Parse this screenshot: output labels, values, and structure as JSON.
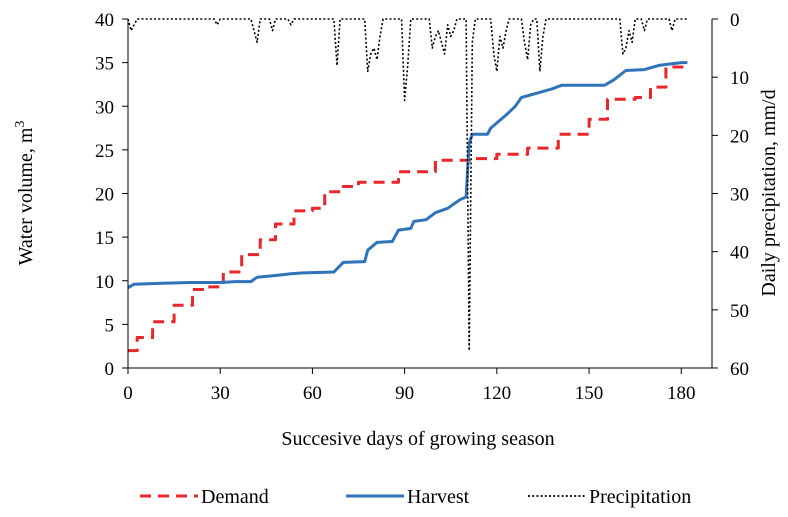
{
  "chart_data": {
    "type": "line",
    "xlabel": "Succesive days of growing season",
    "ylabel_left": "Water volume, m",
    "ylabel_left_sup": "3",
    "ylabel_right": "Daily precipitation, mm/d",
    "xlim": [
      0,
      190
    ],
    "ylim_left": [
      0,
      40
    ],
    "ylim_right": [
      0,
      60
    ],
    "right_axis_inverted": true,
    "x_ticks": [
      "0",
      "30",
      "60",
      "90",
      "120",
      "150",
      "180"
    ],
    "y_left_ticks": [
      "0",
      "5",
      "10",
      "15",
      "20",
      "25",
      "30",
      "35",
      "40"
    ],
    "y_right_ticks": [
      "0",
      "10",
      "20",
      "30",
      "40",
      "50",
      "60"
    ],
    "grid": false,
    "legend_position": "bottom",
    "series": [
      {
        "name": "Demand",
        "axis": "left",
        "color": "#e8262b",
        "style": "dashed",
        "points": [
          [
            0,
            2
          ],
          [
            1,
            2
          ],
          [
            2,
            2
          ],
          [
            3,
            2
          ],
          [
            3,
            3.5
          ],
          [
            8,
            3.5
          ],
          [
            8,
            5.3
          ],
          [
            15,
            5.3
          ],
          [
            15,
            7.2
          ],
          [
            21,
            7.2
          ],
          [
            21,
            9
          ],
          [
            26,
            9
          ],
          [
            26,
            9.3
          ],
          [
            31,
            9.3
          ],
          [
            31,
            11
          ],
          [
            37,
            11
          ],
          [
            37,
            13
          ],
          [
            43,
            13
          ],
          [
            43,
            14.7
          ],
          [
            48,
            14.7
          ],
          [
            48,
            16.5
          ],
          [
            54,
            16.5
          ],
          [
            54,
            18
          ],
          [
            60,
            18
          ],
          [
            60,
            18.3
          ],
          [
            64,
            18.3
          ],
          [
            64,
            20.2
          ],
          [
            70,
            20.2
          ],
          [
            70,
            20.8
          ],
          [
            75,
            20.8
          ],
          [
            75,
            21.3
          ],
          [
            88,
            21.3
          ],
          [
            88,
            22.5
          ],
          [
            100,
            22.5
          ],
          [
            100,
            23.8
          ],
          [
            112,
            23.8
          ],
          [
            112,
            24
          ],
          [
            120,
            24
          ],
          [
            120,
            24.5
          ],
          [
            130,
            24.5
          ],
          [
            130,
            25.2
          ],
          [
            140,
            25.2
          ],
          [
            140,
            26.8
          ],
          [
            150,
            26.8
          ],
          [
            150,
            28.5
          ],
          [
            156,
            28.5
          ],
          [
            156,
            30.8
          ],
          [
            165,
            30.8
          ],
          [
            165,
            31
          ],
          [
            170,
            31
          ],
          [
            170,
            32.2
          ],
          [
            175,
            32.2
          ],
          [
            175,
            34.5
          ],
          [
            181,
            34.5
          ]
        ]
      },
      {
        "name": "Harvest",
        "axis": "left",
        "color": "#2f73b8",
        "style": "solid",
        "points": [
          [
            0,
            9.2
          ],
          [
            2,
            9.6
          ],
          [
            10,
            9.7
          ],
          [
            20,
            9.8
          ],
          [
            30,
            9.8
          ],
          [
            35,
            9.9
          ],
          [
            40,
            9.9
          ],
          [
            42,
            10.4
          ],
          [
            48,
            10.6
          ],
          [
            53,
            10.8
          ],
          [
            57,
            10.9
          ],
          [
            67,
            11
          ],
          [
            70,
            12.1
          ],
          [
            77,
            12.2
          ],
          [
            78,
            13.5
          ],
          [
            81,
            14.4
          ],
          [
            86,
            14.5
          ],
          [
            88,
            15.8
          ],
          [
            92,
            16
          ],
          [
            93,
            16.8
          ],
          [
            97,
            17
          ],
          [
            100,
            17.8
          ],
          [
            104,
            18.3
          ],
          [
            108,
            19.3
          ],
          [
            110,
            19.6
          ],
          [
            111,
            25.8
          ],
          [
            112,
            26.8
          ],
          [
            117,
            26.8
          ],
          [
            118,
            27.5
          ],
          [
            123,
            29
          ],
          [
            126,
            30
          ],
          [
            128,
            31
          ],
          [
            133,
            31.5
          ],
          [
            138,
            32
          ],
          [
            141,
            32.4
          ],
          [
            150,
            32.4
          ],
          [
            155,
            32.4
          ],
          [
            158,
            33
          ],
          [
            162,
            34.1
          ],
          [
            168,
            34.2
          ],
          [
            173,
            34.7
          ],
          [
            180,
            35
          ],
          [
            182,
            35
          ]
        ]
      },
      {
        "name": "Precipitation",
        "axis": "right",
        "color": "#000000",
        "style": "dotted",
        "daily_values_mm": [
          0,
          2,
          1,
          0,
          0,
          0,
          0,
          0,
          0,
          0,
          0,
          0,
          0,
          0,
          0,
          0,
          0,
          0,
          0,
          0,
          0,
          0,
          0,
          0,
          0,
          0,
          0,
          0,
          0,
          1,
          0,
          0,
          0,
          0,
          0,
          0,
          0,
          0,
          0,
          0,
          0,
          2,
          4,
          0,
          0,
          0,
          0,
          2,
          0,
          0,
          0,
          0,
          0,
          1,
          0,
          0,
          0,
          0,
          0,
          0,
          0,
          0,
          0,
          0,
          0,
          0,
          0,
          0,
          8,
          0,
          0,
          0,
          0,
          0,
          0,
          0,
          0,
          0,
          9,
          6,
          5,
          7,
          3,
          0,
          0,
          0,
          0,
          0,
          0,
          0,
          14,
          8,
          0,
          0,
          0,
          0,
          0,
          0,
          0,
          5,
          3,
          2,
          4,
          6,
          1,
          3,
          2,
          0,
          0,
          0,
          0,
          57,
          4,
          0,
          0,
          0,
          0,
          0,
          0,
          6,
          9,
          3,
          5,
          2,
          0,
          0,
          0,
          0,
          0,
          4,
          7,
          1,
          0,
          0,
          9,
          3,
          0,
          0,
          0,
          0,
          0,
          0,
          0,
          0,
          0,
          0,
          0,
          0,
          0,
          0,
          0,
          0,
          0,
          0,
          0,
          0,
          0,
          0,
          0,
          0,
          0,
          6,
          5,
          2,
          4,
          0,
          0,
          0,
          2,
          0,
          0,
          0,
          0,
          0,
          0,
          0,
          0,
          2,
          0,
          0,
          0,
          0,
          0
        ]
      }
    ]
  }
}
